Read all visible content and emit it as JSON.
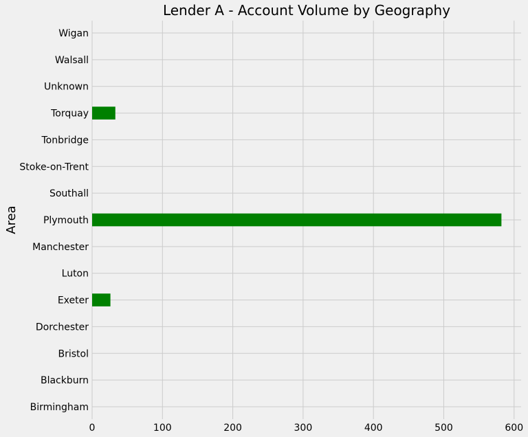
{
  "chart_data": {
    "type": "bar",
    "orientation": "horizontal",
    "title": "Lender A - Account Volume by Geography",
    "ylabel": "Area",
    "xlabel": "",
    "categories": [
      "Birmingham",
      "Blackburn",
      "Bristol",
      "Dorchester",
      "Exeter",
      "Luton",
      "Manchester",
      "Plymouth",
      "Southall",
      "Stoke-on-Trent",
      "Tonbridge",
      "Torquay",
      "Unknown",
      "Walsall",
      "Wigan"
    ],
    "values": [
      0,
      0,
      0,
      0,
      26,
      0,
      0,
      582,
      0,
      0,
      0,
      33,
      0,
      0,
      0
    ],
    "xlim": [
      0,
      610
    ],
    "xticks": [
      0,
      100,
      200,
      300,
      400,
      500,
      600
    ],
    "grid": true,
    "bar_color": "#008000",
    "background_color": "#f0f0f0",
    "grid_color": "#cbcbcb"
  }
}
